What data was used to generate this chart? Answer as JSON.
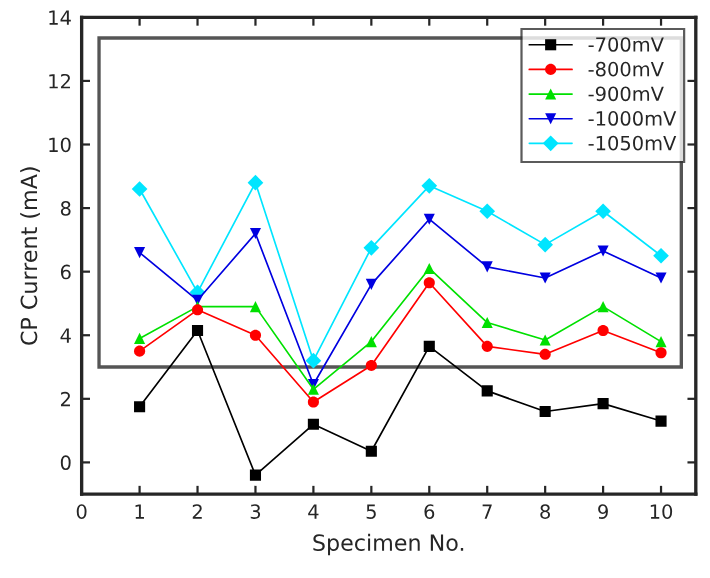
{
  "chart_data": {
    "type": "line",
    "xlabel": "Specimen No.",
    "ylabel": "CP Current (mA)",
    "x": [
      1,
      2,
      3,
      4,
      5,
      6,
      7,
      8,
      9,
      10
    ],
    "xlim": [
      0,
      10.6
    ],
    "xticks": [
      0,
      1,
      2,
      3,
      4,
      5,
      6,
      7,
      8,
      9,
      10
    ],
    "ylim": [
      -1,
      14
    ],
    "yticks": [
      0,
      2,
      4,
      6,
      8,
      10,
      12,
      14
    ],
    "grid": false,
    "legend": "top right",
    "series": [
      {
        "name": "-700mV",
        "color": "#000000",
        "marker": "square",
        "values": [
          1.75,
          4.15,
          -0.4,
          1.2,
          0.35,
          3.65,
          2.25,
          1.6,
          1.85,
          1.3
        ]
      },
      {
        "name": "-800mV",
        "color": "#ff0000",
        "marker": "circle",
        "values": [
          3.5,
          4.8,
          4.0,
          1.9,
          3.05,
          5.65,
          3.65,
          3.4,
          4.15,
          3.45
        ]
      },
      {
        "name": "-900mV",
        "color": "#00e000",
        "marker": "triangle",
        "values": [
          3.9,
          4.9,
          4.9,
          2.3,
          3.8,
          6.1,
          4.4,
          3.85,
          4.9,
          3.8
        ]
      },
      {
        "name": "-1000mV",
        "color": "#0000e0",
        "marker": "triangle-down",
        "values": [
          6.6,
          5.1,
          7.2,
          2.45,
          5.6,
          7.65,
          6.15,
          5.8,
          6.65,
          5.8
        ]
      },
      {
        "name": "-1050mV",
        "color": "#00e5ff",
        "marker": "diamond",
        "values": [
          8.6,
          5.35,
          8.8,
          3.2,
          6.75,
          8.7,
          7.9,
          6.85,
          7.9,
          6.5
        ]
      }
    ]
  }
}
